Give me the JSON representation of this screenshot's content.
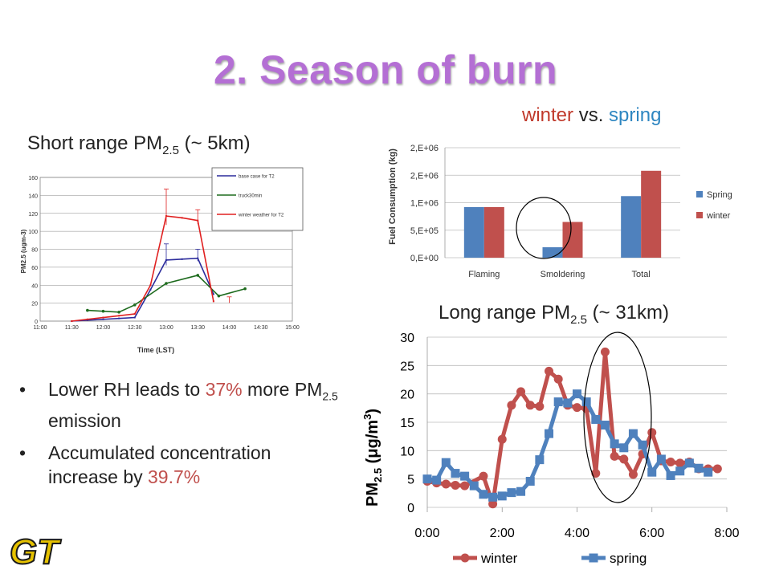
{
  "slide": {
    "title": "2. Season of burn",
    "vs": {
      "winter": "winter",
      "mid": "vs.",
      "spring": "spring"
    },
    "short_heading": {
      "prefix": "Short range PM",
      "sub": "2.5",
      "suffix": " (~ 5km)"
    },
    "long_heading": {
      "prefix": "Long  range PM",
      "sub": "2.5",
      "suffix": " (~ 31km)"
    },
    "bullets": [
      {
        "pre": "Lower RH leads to ",
        "hl": "37%",
        "mid": " more PM",
        "sub": "2.5",
        "post": " emission"
      },
      {
        "pre": "Accumulated concentration increase by ",
        "hl": "39.7%"
      }
    ],
    "logo_text": "GT"
  },
  "colors": {
    "winter": "#c0504d",
    "spring": "#4f81bd",
    "title": "#b46fd4",
    "base": "#2b2b9c",
    "truck": "#1e6b1e",
    "winter_t2": "#e02020"
  },
  "chart_data": [
    {
      "type": "line",
      "ylabel": "PM2.5 (ugm-3)",
      "xlabel": "Time (LST)",
      "x_ticks": [
        "11:00",
        "11:30",
        "12:00",
        "12:30",
        "13:00",
        "13:30",
        "14:00",
        "14:30",
        "15:00"
      ],
      "y_ticks": [
        0,
        20,
        40,
        60,
        80,
        100,
        120,
        140,
        160
      ],
      "ylim": [
        0,
        160
      ],
      "legend_position": "top-right",
      "series": [
        {
          "name": "base case for T2",
          "color_key": "base",
          "x": [
            "11:30",
            "11:45",
            "12:00",
            "12:15",
            "12:30",
            "12:45",
            "13:00",
            "13:15",
            "13:30",
            "13:45"
          ],
          "y": [
            0,
            1,
            2,
            3,
            4,
            35,
            68,
            69,
            70,
            30
          ]
        },
        {
          "name": "truck30min",
          "color_key": "truck",
          "x": [
            "11:45",
            "12:00",
            "12:15",
            "12:30",
            "13:00",
            "13:30",
            "13:50",
            "14:15"
          ],
          "y": [
            12,
            11,
            10,
            18,
            42,
            51,
            28,
            36
          ]
        },
        {
          "name": "winter weather for T2",
          "color_key": "winter_t2",
          "x": [
            "11:30",
            "11:45",
            "12:00",
            "12:15",
            "12:30",
            "12:45",
            "13:00",
            "13:15",
            "13:30",
            "13:45"
          ],
          "y": [
            0,
            2,
            4,
            6,
            8,
            40,
            117,
            115,
            112,
            22
          ]
        }
      ]
    },
    {
      "type": "bar",
      "ylabel": "Fuel Consumption (kg)",
      "categories": [
        "Flaming",
        "Smoldering",
        "Total"
      ],
      "y_ticks": [
        "0,E+00",
        "5,E+05",
        "1,E+06",
        "2,E+06",
        "2,E+06"
      ],
      "ylim": [
        0,
        2000000
      ],
      "legend_position": "right",
      "series": [
        {
          "name": "Spring",
          "color_key": "spring",
          "values": [
            920000,
            190000,
            1120000
          ]
        },
        {
          "name": "winter",
          "color_key": "winter",
          "values": [
            920000,
            650000,
            1580000
          ]
        }
      ]
    },
    {
      "type": "line",
      "x_ticks": [
        "0:00",
        "2:00",
        "4:00",
        "6:00",
        "8:00"
      ],
      "y_ticks": [
        0,
        5,
        10,
        15,
        20,
        25,
        30
      ],
      "xlim": [
        0,
        480
      ],
      "ylim": [
        0,
        30
      ],
      "legend_position": "bottom",
      "series": [
        {
          "name": "winter",
          "color_key": "winter",
          "x": [
            0,
            15,
            30,
            45,
            60,
            90,
            105,
            120,
            135,
            150,
            165,
            180,
            195,
            210,
            225,
            240,
            255,
            270,
            285,
            300,
            315,
            330,
            345,
            360,
            375,
            390,
            405,
            420,
            435,
            450,
            465
          ],
          "y": [
            4.6,
            4.3,
            4.1,
            3.9,
            3.8,
            5.5,
            0.6,
            12,
            18,
            20.4,
            18,
            17.8,
            24,
            22.6,
            18,
            17.6,
            17.4,
            6,
            27.4,
            9,
            8.5,
            5.8,
            9.4,
            13.2,
            8.2,
            8,
            7.8,
            8,
            6.8,
            6.8,
            6.8
          ]
        },
        {
          "name": "spring",
          "color_key": "spring",
          "x": [
            0,
            15,
            30,
            45,
            60,
            75,
            90,
            105,
            120,
            135,
            150,
            165,
            180,
            195,
            210,
            225,
            240,
            255,
            270,
            285,
            300,
            315,
            330,
            345,
            360,
            375,
            390,
            405,
            420,
            435,
            450
          ],
          "y": [
            5,
            4.8,
            7.9,
            6,
            5.5,
            3.8,
            2.3,
            1.8,
            2,
            2.6,
            2.8,
            4.6,
            8.4,
            13,
            18.6,
            18.4,
            20,
            18.6,
            15.5,
            14.5,
            11.2,
            10.5,
            13,
            11,
            6.2,
            8.5,
            5.6,
            6.4,
            7.8,
            6.9,
            6.2
          ]
        }
      ]
    }
  ]
}
